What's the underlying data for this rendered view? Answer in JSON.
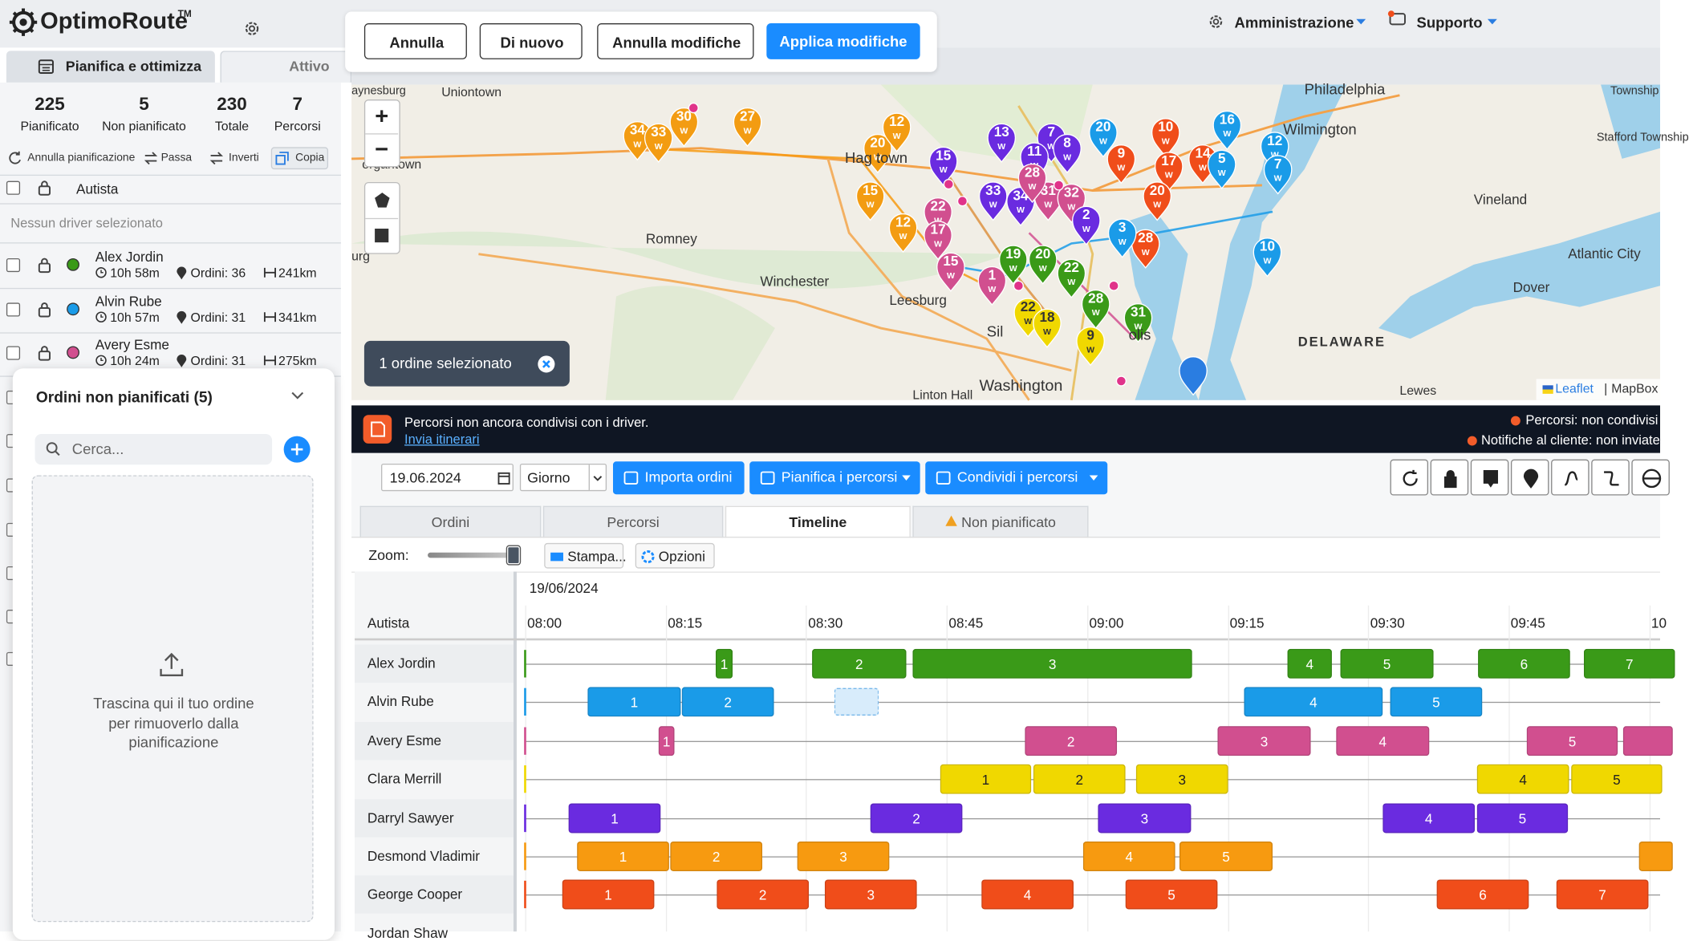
{
  "header": {
    "logo": "OptimoRoute",
    "logo_tm": "TM",
    "admin": "Amministrazione",
    "support": "Supporto"
  },
  "edit_bar": {
    "buttons": [
      "Annulla",
      "Di nuovo",
      "Annulla modifiche",
      "Applica modifiche"
    ]
  },
  "sidebar": {
    "tabs": [
      "Pianifica e ottimizza",
      "Attivo"
    ],
    "stats": [
      {
        "value": "225",
        "label": "Pianificato"
      },
      {
        "value": "5",
        "label": "Non pianificato"
      },
      {
        "value": "230",
        "label": "Totale"
      },
      {
        "value": "7",
        "label": "Percorsi"
      }
    ],
    "actions": [
      "Annulla pianificazione",
      "Passa",
      "Inverti",
      "Copia"
    ],
    "column": "Autista",
    "empty": "Nessun driver selezionato",
    "drivers": [
      {
        "name": "Alex Jordin",
        "time": "10h 58m",
        "orders": "Ordini: 36",
        "distance": "241km"
      },
      {
        "name": "Alvin Rube",
        "time": "10h 57m",
        "orders": "Ordini: 31",
        "distance": "341km"
      },
      {
        "name": "Avery Esme",
        "time": "10h 24m",
        "orders": "Ordini: 31",
        "distance": "275km"
      }
    ]
  },
  "unplanned": {
    "title": "Ordini non pianificati (5)",
    "search": "Cerca...",
    "drop": "Trascina qui il tuo ordine per rimuoverlo dalla pianificazione"
  },
  "map": {
    "places": [
      "aynesburg",
      "Uniontown",
      "organtown",
      "Romney",
      "Winchester",
      "Leesburg",
      "Washington",
      "Linton Hall",
      "Philadelphia",
      "Wilmington",
      "Vineland",
      "Dover",
      "Atlantic City",
      "DELAWARE",
      "Lewes",
      "Stafford Township",
      "Township",
      "Hag   town",
      "olis",
      "Sil",
      "urg"
    ],
    "markers": [
      "34",
      "33",
      "30",
      "27",
      "20",
      "12",
      "15",
      "12",
      "15",
      "13",
      "7",
      "11",
      "8",
      "20",
      "10",
      "9",
      "17",
      "14",
      "16",
      "12",
      "5",
      "7",
      "10",
      "33",
      "34",
      "31",
      "32",
      "28",
      "22",
      "17",
      "15",
      "19",
      "20",
      "22",
      "28",
      "31",
      "28",
      "20",
      "22",
      "18",
      "9",
      "3",
      "2",
      "1"
    ],
    "w_label": "W",
    "zoom_in": "+",
    "zoom_out": "−",
    "selection": "1 ordine selezionato",
    "attribution_leaflet": "Leaflet",
    "attribution_sep": "|",
    "attribution_mapbox": "MapBox"
  },
  "banner": {
    "message": "Percorsi non ancora condivisi con i driver.",
    "link": "Invia itinerari",
    "routes_status": "Percorsi: non condivisi",
    "notify_status": "Notifiche al cliente: non inviate"
  },
  "toolbar": {
    "date": "19.06.2024",
    "period": "Giorno",
    "import": "Importa ordini",
    "plan": "Pianifica i percorsi",
    "share": "Condividi i percorsi"
  },
  "tabs": [
    "Ordini",
    "Percorsi",
    "Timeline",
    "Non pianificato"
  ],
  "timeline": {
    "zoom": "Zoom:",
    "print": "Stampa...",
    "options": "Opzioni",
    "date": "19/06/2024",
    "column": "Autista",
    "times": [
      "08:00",
      "08:15",
      "08:30",
      "08:45",
      "09:00",
      "09:15",
      "09:30",
      "09:45",
      "10"
    ],
    "rows": [
      {
        "driver": "Alex Jordin",
        "stops": [
          "1",
          "2",
          "3",
          "4",
          "5",
          "6",
          "7"
        ]
      },
      {
        "driver": "Alvin Rube",
        "stops": [
          "1",
          "2",
          "4",
          "5"
        ]
      },
      {
        "driver": "Avery Esme",
        "stops": [
          "1",
          "2",
          "3",
          "4",
          "5"
        ]
      },
      {
        "driver": "Clara Merrill",
        "stops": [
          "1",
          "2",
          "3",
          "4",
          "5"
        ]
      },
      {
        "driver": "Darryl Sawyer",
        "stops": [
          "1",
          "2",
          "3",
          "4",
          "5"
        ]
      },
      {
        "driver": "Desmond Vladimir",
        "stops": [
          "1",
          "2",
          "3",
          "4",
          "5"
        ]
      },
      {
        "driver": "George Cooper",
        "stops": [
          "1",
          "2",
          "3",
          "4",
          "5",
          "6",
          "7"
        ]
      },
      {
        "driver": "Jordan Shaw",
        "stops": []
      }
    ]
  }
}
